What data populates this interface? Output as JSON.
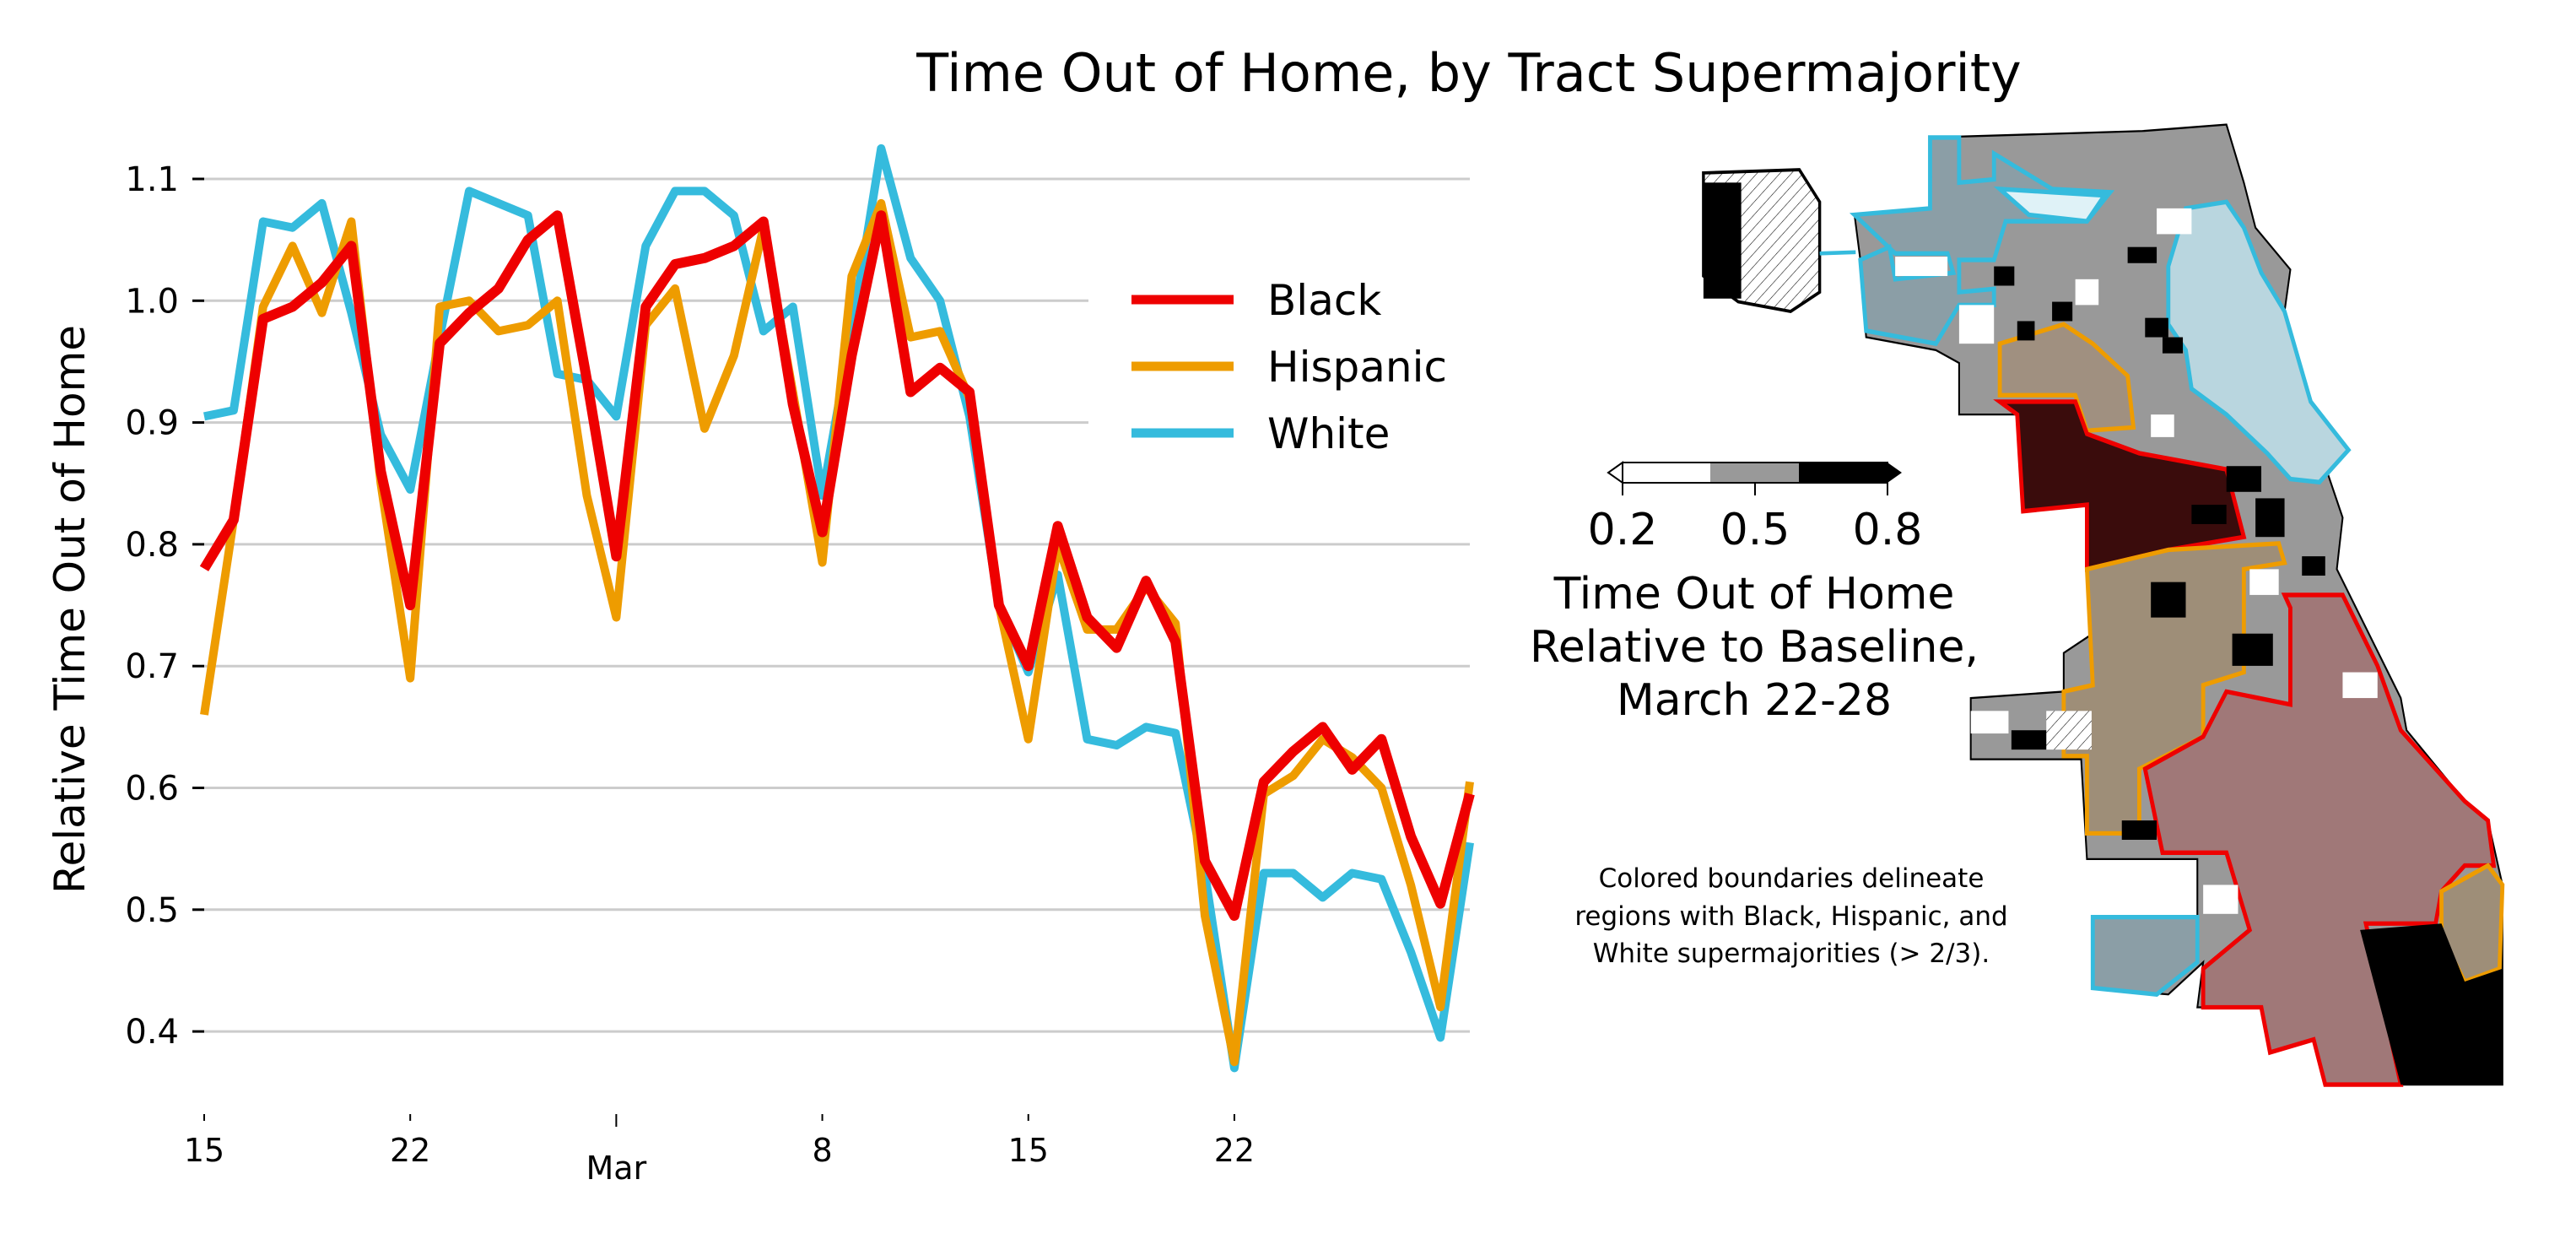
{
  "chart_data": [
    {
      "type": "line",
      "title": "Time Out of Home, by Tract Supermajority",
      "xlabel": "",
      "ylabel": "Relative Time Out of Home",
      "ylim": [
        0.34,
        1.14
      ],
      "yticks": [
        "0.4",
        "0.5",
        "0.6",
        "0.7",
        "0.8",
        "0.9",
        "1.0",
        "1.1"
      ],
      "xtick_labels": [
        {
          "label": "15",
          "date": "Feb 15"
        },
        {
          "label": "22",
          "date": "Feb 22"
        },
        {
          "label": "Mar",
          "date": "Mar 1"
        },
        {
          "label": "8",
          "date": "Mar 8"
        },
        {
          "label": "15",
          "date": "Mar 15"
        },
        {
          "label": "22",
          "date": "Mar 22"
        }
      ],
      "grid": "horizontal",
      "legend_position": "upper-right",
      "x": [
        "Feb 15",
        "Feb 16",
        "Feb 17",
        "Feb 18",
        "Feb 19",
        "Feb 20",
        "Feb 21",
        "Feb 22",
        "Feb 23",
        "Feb 24",
        "Feb 25",
        "Feb 26",
        "Feb 27",
        "Feb 28",
        "Mar 1",
        "Mar 2",
        "Mar 3",
        "Mar 4",
        "Mar 5",
        "Mar 6",
        "Mar 7",
        "Mar 8",
        "Mar 9",
        "Mar 10",
        "Mar 11",
        "Mar 12",
        "Mar 13",
        "Mar 14",
        "Mar 15",
        "Mar 16",
        "Mar 17",
        "Mar 18",
        "Mar 19",
        "Mar 20",
        "Mar 21",
        "Mar 22",
        "Mar 23",
        "Mar 24",
        "Mar 25",
        "Mar 26",
        "Mar 27",
        "Mar 28",
        "Mar 29",
        "Mar 30"
      ],
      "series": [
        {
          "name": "White",
          "color": "#35bbdd",
          "values": [
            0.905,
            0.91,
            1.065,
            1.06,
            1.08,
            0.99,
            0.89,
            0.845,
            0.97,
            1.09,
            1.08,
            1.07,
            0.94,
            0.935,
            0.905,
            1.045,
            1.09,
            1.09,
            1.07,
            0.975,
            0.995,
            0.84,
            0.975,
            1.125,
            1.035,
            1.0,
            0.905,
            0.75,
            0.695,
            0.775,
            0.64,
            0.635,
            0.65,
            0.645,
            0.53,
            0.37,
            0.53,
            0.53,
            0.51,
            0.53,
            0.525,
            0.465,
            0.395,
            0.555
          ]
        },
        {
          "name": "Hispanic",
          "color": "#ee9c00",
          "values": [
            0.66,
            0.82,
            0.995,
            1.045,
            0.99,
            1.065,
            0.85,
            0.69,
            0.995,
            1.0,
            0.975,
            0.98,
            1.0,
            0.84,
            0.74,
            0.98,
            1.01,
            0.895,
            0.955,
            1.06,
            0.925,
            0.785,
            1.02,
            1.08,
            0.97,
            0.975,
            0.92,
            0.75,
            0.64,
            0.8,
            0.73,
            0.73,
            0.765,
            0.735,
            0.495,
            0.375,
            0.595,
            0.61,
            0.64,
            0.625,
            0.6,
            0.52,
            0.42,
            0.605
          ]
        },
        {
          "name": "Black",
          "color": "#ee0000",
          "values": [
            0.78,
            0.82,
            0.985,
            0.995,
            1.015,
            1.045,
            0.86,
            0.75,
            0.965,
            0.99,
            1.01,
            1.05,
            1.07,
            0.935,
            0.79,
            0.995,
            1.03,
            1.035,
            1.045,
            1.065,
            0.915,
            0.81,
            0.955,
            1.07,
            0.925,
            0.945,
            0.925,
            0.75,
            0.7,
            0.815,
            0.74,
            0.715,
            0.77,
            0.72,
            0.54,
            0.495,
            0.605,
            0.63,
            0.65,
            0.615,
            0.64,
            0.56,
            0.505,
            0.595
          ]
        }
      ],
      "legend": [
        "Black",
        "Hispanic",
        "White"
      ]
    }
  ],
  "map": {
    "colorbar": {
      "ticks": [
        "0.2",
        "0.5",
        "0.8"
      ],
      "colors": [
        "#ffffff",
        "#999999",
        "#000000"
      ],
      "extend": "both",
      "label_lines": [
        "Time Out of Home",
        "Relative to Baseline,",
        "March 22-28"
      ]
    },
    "note_lines": [
      "Colored boundaries delineate",
      "regions with Black, Hispanic, and",
      "White supermajorities (> 2/3)."
    ],
    "boundary_colors": {
      "Black": "#ee0000",
      "Hispanic": "#ee9c00",
      "White": "#35bbdd"
    }
  }
}
